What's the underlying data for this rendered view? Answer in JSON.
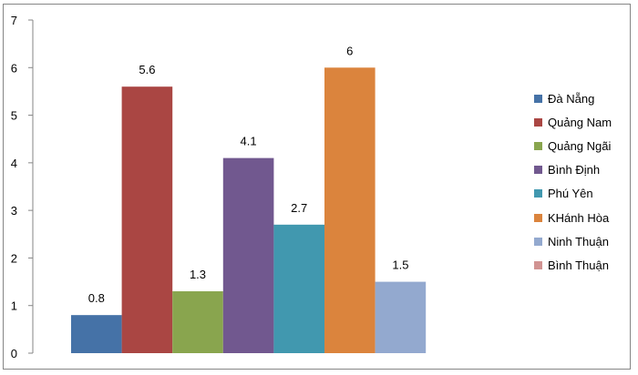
{
  "chart_data": {
    "type": "bar",
    "categories": [
      "Đà Nẵng",
      "Quảng Nam",
      "Quảng Ngãi",
      "Bình Định",
      "Phú Yên",
      "KHánh Hòa",
      "Ninh Thuận",
      "Bình Thuận"
    ],
    "values": [
      0.8,
      5.6,
      1.3,
      4.1,
      2.7,
      6,
      1.5,
      0
    ],
    "data_labels": [
      "0.8",
      "5.6",
      "1.3",
      "4.1",
      "2.7",
      "6",
      "1.5",
      ""
    ],
    "colors": [
      "#4572A7",
      "#AA4643",
      "#89A54E",
      "#71588F",
      "#4198AF",
      "#DB843D",
      "#93A9CF",
      "#D19392"
    ],
    "ylim": [
      0,
      7
    ],
    "yticks": [
      "0",
      "1",
      "2",
      "3",
      "4",
      "5",
      "6",
      "7"
    ],
    "grid": false,
    "legend": "right",
    "title": "",
    "xlabel": "",
    "ylabel": ""
  }
}
